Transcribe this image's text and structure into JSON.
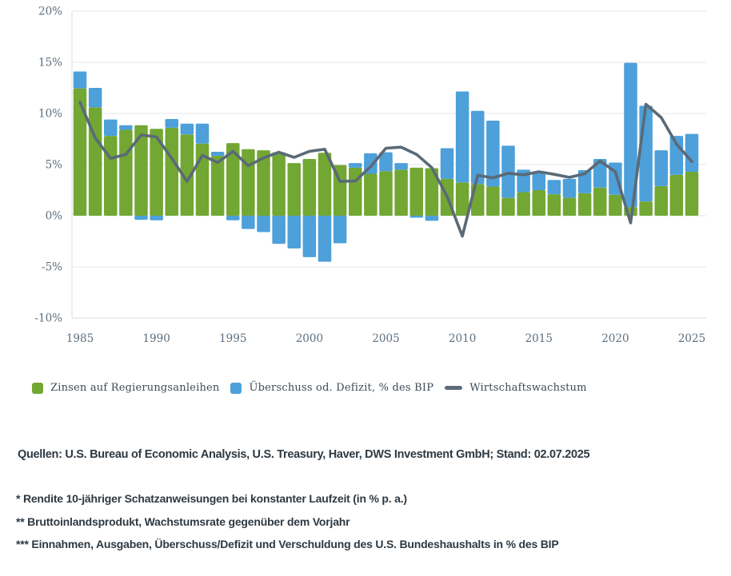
{
  "page": {
    "background": "#ffffff"
  },
  "colors": {
    "bar_green": "#72a733",
    "bar_blue": "#4da0d9",
    "growth_line": "#5a6a76",
    "gridline": "#e9ebed",
    "axis_line": "#dfe3e6",
    "tick_text": "#5c6e7e",
    "legend_text": "#3d4a54",
    "footer_text": "#2e3942"
  },
  "legend": {
    "items": [
      {
        "label": "Zinsen auf Regierungsanleihen",
        "swatch": "square",
        "color": "#72a733"
      },
      {
        "label": "Überschuss od. Defizit, % des BIP",
        "swatch": "square",
        "color": "#4da0d9"
      },
      {
        "label": "Wirtschaftswachstum",
        "swatch": "line",
        "color": "#5c6b78"
      }
    ]
  },
  "sources_line": "Quellen: U.S. Bureau of Economic Analysis, U.S. Treasury, Haver, DWS Investment GmbH; Stand: 02.07.2025",
  "footnotes": [
    "* Rendite 10-jähriger Schatzanweisungen bei konstanter Laufzeit (in % p. a.)",
    "** Bruttoinlandsprodukt, Wachstumsrate gegenüber dem Vorjahr",
    "*** Einnahmen, Ausgaben, Überschuss/Defizit und Verschuldung des U.S. Bundeshaushalts in % des BIP"
  ],
  "chart_data": {
    "type": "bar",
    "subtype": "stacked-bars-with-line",
    "x": [
      1985,
      1986,
      1987,
      1988,
      1989,
      1990,
      1991,
      1992,
      1993,
      1994,
      1995,
      1996,
      1997,
      1998,
      1999,
      2000,
      2001,
      2002,
      2003,
      2004,
      2005,
      2006,
      2007,
      2008,
      2009,
      2010,
      2011,
      2012,
      2013,
      2014,
      2015,
      2016,
      2017,
      2018,
      2019,
      2020,
      2021,
      2022,
      2023,
      2024,
      2025
    ],
    "series": [
      {
        "name": "Zinsen auf Regierungsanleihen",
        "type": "bar",
        "color": "#72a733",
        "values": [
          12.45,
          10.6,
          7.8,
          8.4,
          8.85,
          8.5,
          8.6,
          7.95,
          7.05,
          5.85,
          7.1,
          6.5,
          6.4,
          6.2,
          5.15,
          5.55,
          6.15,
          4.95,
          4.7,
          4.1,
          4.35,
          4.5,
          4.7,
          4.65,
          3.6,
          3.25,
          3.1,
          2.85,
          1.75,
          2.3,
          2.5,
          2.1,
          1.75,
          2.2,
          2.75,
          2.05,
          0.85,
          1.4,
          2.9,
          4.0,
          4.3
        ]
      },
      {
        "name": "Überschuss od. Defizit, % des BIP",
        "type": "bar",
        "color": "#4da0d9",
        "values": [
          1.65,
          1.9,
          1.6,
          0.45,
          -0.4,
          -0.45,
          0.85,
          1.05,
          1.95,
          0.4,
          -0.45,
          -1.3,
          -1.6,
          -2.75,
          -3.2,
          -4.05,
          -4.5,
          -2.7,
          0.45,
          2.0,
          1.85,
          0.65,
          -0.2,
          -0.5,
          3.0,
          8.9,
          7.15,
          6.45,
          5.1,
          2.2,
          1.7,
          1.4,
          1.85,
          2.25,
          2.8,
          3.15,
          14.1,
          9.35,
          3.5,
          3.8,
          3.7
        ]
      },
      {
        "name": "Wirtschaftswachstum",
        "type": "line",
        "color": "#5a6a76",
        "values": [
          11.1,
          7.6,
          5.6,
          6.0,
          7.9,
          7.7,
          5.6,
          3.35,
          5.9,
          5.2,
          6.3,
          4.9,
          5.65,
          6.2,
          5.7,
          6.3,
          6.5,
          3.35,
          3.4,
          4.8,
          6.6,
          6.7,
          6.0,
          4.7,
          1.9,
          -2.0,
          3.95,
          3.7,
          4.15,
          4.0,
          4.3,
          4.05,
          3.75,
          4.1,
          5.35,
          4.3,
          -0.7,
          10.9,
          9.6,
          7.0,
          5.3
        ]
      }
    ],
    "title": "",
    "xlabel": "",
    "ylabel": "",
    "ylim": [
      -10,
      20
    ],
    "grid": "horizontal",
    "legend_position": "bottom",
    "yticks": [
      {
        "value": 20,
        "label": "20%"
      },
      {
        "value": 15,
        "label": "15%"
      },
      {
        "value": 10,
        "label": "10%"
      },
      {
        "value": 5,
        "label": "5%"
      },
      {
        "value": 0,
        "label": "0%"
      },
      {
        "value": -5,
        "label": "-5%"
      },
      {
        "value": -10,
        "label": "-10%"
      }
    ],
    "xticks": [
      {
        "value": 1985,
        "label": "1985"
      },
      {
        "value": 1990,
        "label": "1990"
      },
      {
        "value": 1995,
        "label": "1995"
      },
      {
        "value": 2000,
        "label": "2000"
      },
      {
        "value": 2005,
        "label": "2005"
      },
      {
        "value": 2010,
        "label": "2010"
      },
      {
        "value": 2015,
        "label": "2015"
      },
      {
        "value": 2020,
        "label": "2020"
      },
      {
        "value": 2025,
        "label": "2025"
      }
    ]
  }
}
